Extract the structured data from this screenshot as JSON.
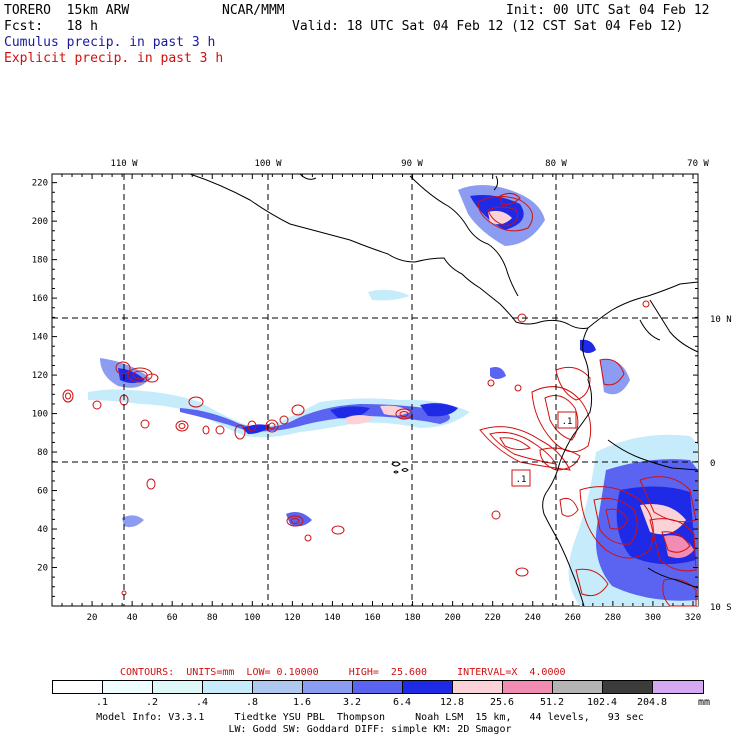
{
  "header": {
    "model": "TORERO  15km ARW",
    "org": "NCAR/MMM",
    "init": "Init: 00 UTC Sat 04 Feb 12",
    "fcst": "Fcst:   18 h",
    "valid": "Valid: 18 UTC Sat 04 Feb 12 (12 CST Sat 04 Feb 12)",
    "field1": "Cumulus precip. in past 3 h",
    "field2": "Explicit precip. in past 3 h"
  },
  "axes": {
    "top_lon_labels": [
      "110 W",
      "100 W",
      "90 W",
      "80 W",
      "70 W"
    ],
    "right_lat_labels": [
      "10 N",
      "0",
      "10 S"
    ],
    "y_ticks": [
      "220",
      "200",
      "180",
      "160",
      "140",
      "120",
      "100",
      "80",
      "60",
      "40",
      "20"
    ],
    "x_ticks": [
      "20",
      "40",
      "60",
      "80",
      "100",
      "120",
      "140",
      "160",
      "180",
      "200",
      "220",
      "240",
      "260",
      "280",
      "300",
      "320"
    ]
  },
  "contours_line": "CONTOURS:  UNITS=mm  LOW= 0.10000     HIGH=  25.600     INTERVAL=X  4.0000",
  "legend": {
    "labels": [
      ".1",
      ".2",
      ".4",
      ".8",
      "1.6",
      "3.2",
      "6.4",
      "12.8",
      "25.6",
      "51.2",
      "102.4",
      "204.8"
    ],
    "unit": "mm",
    "colors": [
      "#ffffff",
      "#eefdfd",
      "#def7f7",
      "#c6ecfb",
      "#b0c8f0",
      "#8c9cf0",
      "#5a64f0",
      "#1e2ae6",
      "#fbd2d7",
      "#f28cb2",
      "#b4b4b4",
      "#3c3c3c",
      "#d6a8f4"
    ]
  },
  "footer": {
    "line1": "Model Info: V3.3.1     Tiedtke YSU PBL  Thompson     Noah LSM  15 km,   44 levels,   93 sec",
    "line2": "LW: Godd SW: Goddard DIFF: simple KM: 2D Smagor"
  },
  "annotations": {
    "box_label": ".1"
  }
}
